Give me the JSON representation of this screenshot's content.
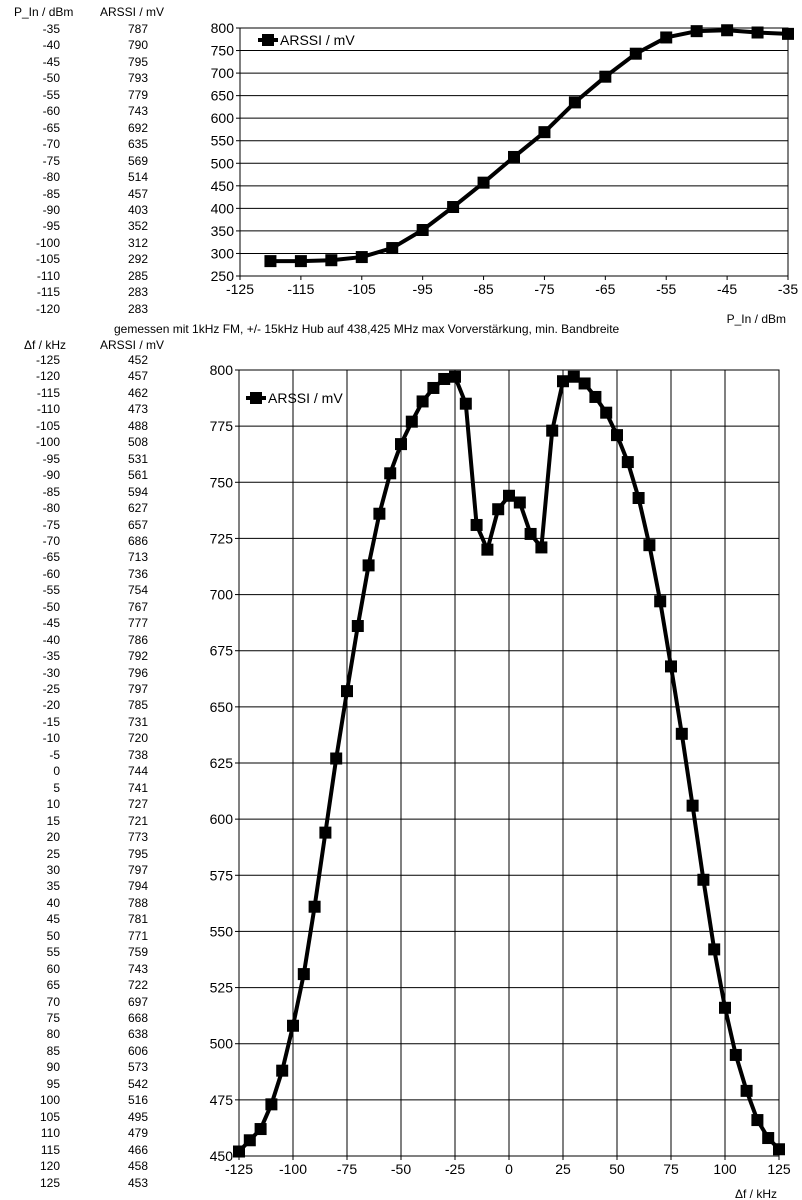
{
  "table1": {
    "header_x": "P_In / dBm",
    "header_y": "ARSSI / mV",
    "rows": [
      [
        "-35",
        "787"
      ],
      [
        "-40",
        "790"
      ],
      [
        "-45",
        "795"
      ],
      [
        "-50",
        "793"
      ],
      [
        "-55",
        "779"
      ],
      [
        "-60",
        "743"
      ],
      [
        "-65",
        "692"
      ],
      [
        "-70",
        "635"
      ],
      [
        "-75",
        "569"
      ],
      [
        "-80",
        "514"
      ],
      [
        "-85",
        "457"
      ],
      [
        "-90",
        "403"
      ],
      [
        "-95",
        "352"
      ],
      [
        "-100",
        "312"
      ],
      [
        "-105",
        "292"
      ],
      [
        "-110",
        "285"
      ],
      [
        "-115",
        "283"
      ],
      [
        "-120",
        "283"
      ]
    ]
  },
  "table2": {
    "header_x": "Δf / kHz",
    "header_y": "ARSSI / mV",
    "rows": [
      [
        "-125",
        "452"
      ],
      [
        "-120",
        "457"
      ],
      [
        "-115",
        "462"
      ],
      [
        "-110",
        "473"
      ],
      [
        "-105",
        "488"
      ],
      [
        "-100",
        "508"
      ],
      [
        "-95",
        "531"
      ],
      [
        "-90",
        "561"
      ],
      [
        "-85",
        "594"
      ],
      [
        "-80",
        "627"
      ],
      [
        "-75",
        "657"
      ],
      [
        "-70",
        "686"
      ],
      [
        "-65",
        "713"
      ],
      [
        "-60",
        "736"
      ],
      [
        "-55",
        "754"
      ],
      [
        "-50",
        "767"
      ],
      [
        "-45",
        "777"
      ],
      [
        "-40",
        "786"
      ],
      [
        "-35",
        "792"
      ],
      [
        "-30",
        "796"
      ],
      [
        "-25",
        "797"
      ],
      [
        "-20",
        "785"
      ],
      [
        "-15",
        "731"
      ],
      [
        "-10",
        "720"
      ],
      [
        "-5",
        "738"
      ],
      [
        "0",
        "744"
      ],
      [
        "5",
        "741"
      ],
      [
        "10",
        "727"
      ],
      [
        "15",
        "721"
      ],
      [
        "20",
        "773"
      ],
      [
        "25",
        "795"
      ],
      [
        "30",
        "797"
      ],
      [
        "35",
        "794"
      ],
      [
        "40",
        "788"
      ],
      [
        "45",
        "781"
      ],
      [
        "50",
        "771"
      ],
      [
        "55",
        "759"
      ],
      [
        "60",
        "743"
      ],
      [
        "65",
        "722"
      ],
      [
        "70",
        "697"
      ],
      [
        "75",
        "668"
      ],
      [
        "80",
        "638"
      ],
      [
        "85",
        "606"
      ],
      [
        "90",
        "573"
      ],
      [
        "95",
        "542"
      ],
      [
        "100",
        "516"
      ],
      [
        "105",
        "495"
      ],
      [
        "110",
        "479"
      ],
      [
        "115",
        "466"
      ],
      [
        "120",
        "458"
      ],
      [
        "125",
        "453"
      ]
    ]
  },
  "measurement_note": "gemessen mit 1kHz FM,  +/- 15kHz Hub auf 438,425 MHz max Vorverstärkung, min. Bandbreite",
  "chart_data": [
    {
      "type": "line",
      "title": "",
      "xlabel": "P_In / dBm",
      "ylabel": "",
      "xlim": [
        -125,
        -35
      ],
      "ylim": [
        250,
        800
      ],
      "xticks": [
        -125,
        -115,
        -105,
        -95,
        -85,
        -75,
        -65,
        -55,
        -45,
        -35
      ],
      "yticks": [
        250,
        300,
        350,
        400,
        450,
        500,
        550,
        600,
        650,
        700,
        750,
        800
      ],
      "xgrid": false,
      "ygrid": true,
      "legend_position": "top-left",
      "series": [
        {
          "name": "ARSSI / mV",
          "color": "#000000",
          "marker": "square",
          "x": [
            -120,
            -115,
            -110,
            -105,
            -100,
            -95,
            -90,
            -85,
            -80,
            -75,
            -70,
            -65,
            -60,
            -55,
            -50,
            -45,
            -40,
            -35
          ],
          "y": [
            283,
            283,
            285,
            292,
            312,
            352,
            403,
            457,
            514,
            569,
            635,
            692,
            743,
            779,
            793,
            795,
            790,
            787
          ]
        }
      ]
    },
    {
      "type": "line",
      "title": "",
      "xlabel": "Δf / kHz",
      "ylabel": "",
      "xlim": [
        -125,
        125
      ],
      "ylim": [
        450,
        800
      ],
      "xticks": [
        -125,
        -100,
        -75,
        -50,
        -25,
        0,
        25,
        50,
        75,
        100,
        125
      ],
      "yticks": [
        450,
        475,
        500,
        525,
        550,
        575,
        600,
        625,
        650,
        675,
        700,
        725,
        750,
        775,
        800
      ],
      "xgrid": true,
      "ygrid": true,
      "legend_position": "top-left",
      "series": [
        {
          "name": "ARSSI / mV",
          "color": "#000000",
          "marker": "square",
          "x": [
            -125,
            -120,
            -115,
            -110,
            -105,
            -100,
            -95,
            -90,
            -85,
            -80,
            -75,
            -70,
            -65,
            -60,
            -55,
            -50,
            -45,
            -40,
            -35,
            -30,
            -25,
            -20,
            -15,
            -10,
            -5,
            0,
            5,
            10,
            15,
            20,
            25,
            30,
            35,
            40,
            45,
            50,
            55,
            60,
            65,
            70,
            75,
            80,
            85,
            90,
            95,
            100,
            105,
            110,
            115,
            120,
            125
          ],
          "y": [
            452,
            457,
            462,
            473,
            488,
            508,
            531,
            561,
            594,
            627,
            657,
            686,
            713,
            736,
            754,
            767,
            777,
            786,
            792,
            796,
            797,
            785,
            731,
            720,
            738,
            744,
            741,
            727,
            721,
            773,
            795,
            797,
            794,
            788,
            781,
            771,
            759,
            743,
            722,
            697,
            668,
            638,
            606,
            573,
            542,
            516,
            495,
            479,
            466,
            458,
            453
          ]
        }
      ]
    }
  ]
}
